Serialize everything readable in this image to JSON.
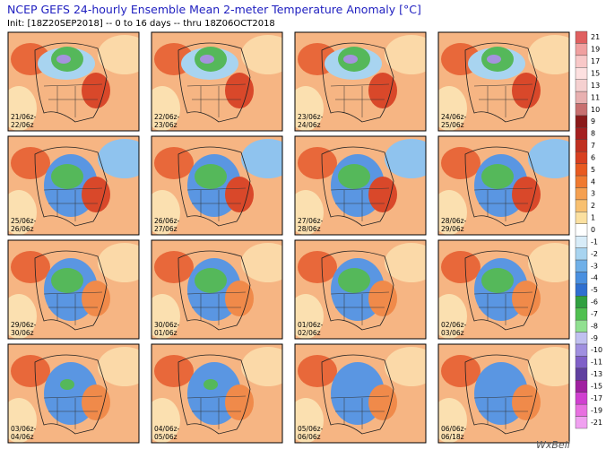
{
  "header": {
    "title": "NCEP GEFS 24-hourly Ensemble Mean 2-meter Temperature Anomaly [°C]",
    "init": "Init: [18Z20SEP2018] -- 0 to 16 days -- thru 18Z06OCT2018"
  },
  "panels": [
    [
      "21/06z-",
      "22/06z"
    ],
    [
      "22/06z-",
      "23/06z"
    ],
    [
      "23/06z-",
      "24/06z"
    ],
    [
      "24/06z-",
      "25/06z"
    ],
    [
      "25/06z-",
      "26/06z"
    ],
    [
      "26/06z-",
      "27/06z"
    ],
    [
      "27/06z-",
      "28/06z"
    ],
    [
      "28/06z-",
      "29/06z"
    ],
    [
      "29/06z-",
      "30/06z"
    ],
    [
      "30/06z-",
      "01/06z"
    ],
    [
      "01/06z-",
      "02/06z"
    ],
    [
      "02/06z-",
      "03/06z"
    ],
    [
      "03/06z-",
      "04/06z"
    ],
    [
      "04/06z-",
      "05/06z"
    ],
    [
      "05/06z-",
      "06/06z"
    ],
    [
      "06/06z-",
      "06/18z"
    ]
  ],
  "colorbar": {
    "labels": [
      "21",
      "19",
      "17",
      "15",
      "13",
      "11",
      "10",
      "9",
      "8",
      "7",
      "6",
      "5",
      "4",
      "3",
      "2",
      "1",
      "0",
      "-1",
      "-2",
      "-3",
      "-4",
      "-5",
      "-6",
      "-7",
      "-8",
      "-9",
      "-10",
      "-11",
      "-13",
      "-15",
      "-17",
      "-19",
      "-21"
    ]
  },
  "watermark": "WxBell"
}
